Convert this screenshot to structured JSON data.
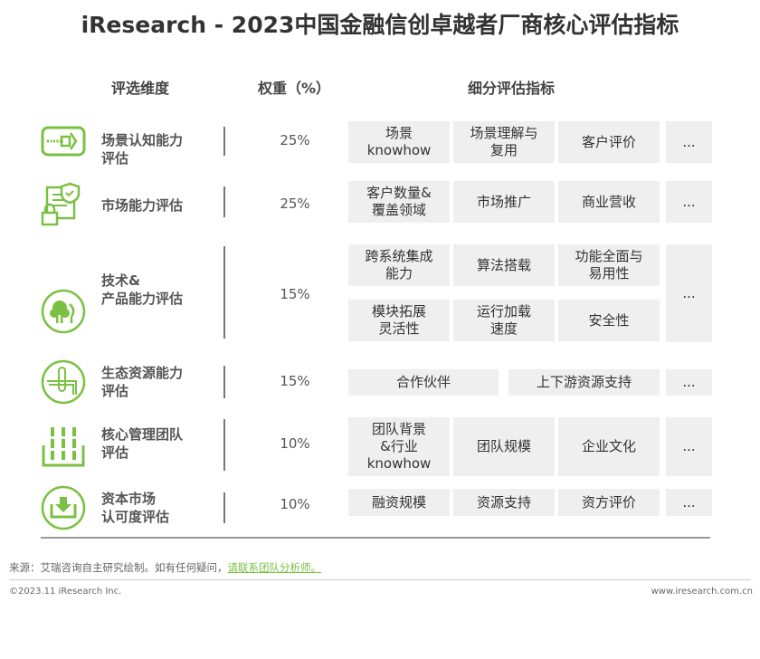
{
  "title": "iResearch - 2023中国金融信创卓越者厂商核心评估指标",
  "headers": {
    "dimension": "评选维度",
    "weight": "权重（%）",
    "indicators": "细分评估指标"
  },
  "accent": "#7ac143",
  "rows": [
    {
      "icon": "zipper-icon",
      "label": [
        "场景认知能力",
        "评估"
      ],
      "weight": "25%",
      "indicators": [
        [
          "场景",
          "knowhow"
        ],
        [
          "场景理解与",
          "复用"
        ],
        [
          "客户评价"
        ]
      ],
      "more": "..."
    },
    {
      "icon": "document-lock-shield-icon",
      "label": [
        "市场能力评估"
      ],
      "weight": "25%",
      "indicators": [
        [
          "客户数量&",
          "覆盖领域"
        ],
        [
          "市场推广"
        ],
        [
          "商业营收"
        ]
      ],
      "more": "..."
    },
    {
      "icon": "trees-icon",
      "label": [
        "技术&",
        "产品能力评估"
      ],
      "weight": "15%",
      "indicators": [
        [
          "跨系统集成",
          "能力"
        ],
        [
          "算法搭载"
        ],
        [
          "功能全面与",
          "易用性"
        ],
        [
          "模块拓展",
          "灵活性"
        ],
        [
          "运行加载",
          "速度"
        ],
        [
          "安全性"
        ]
      ],
      "more": "..."
    },
    {
      "icon": "paperclip-icon",
      "label": [
        "生态资源能力",
        "评估"
      ],
      "weight": "15%",
      "indicators": [
        [
          "合作伙伴"
        ],
        [
          "上下游资源支持"
        ]
      ],
      "more": "..."
    },
    {
      "icon": "team-bars-icon",
      "label": [
        "核心管理团队",
        "评估"
      ],
      "weight": "10%",
      "indicators": [
        [
          "团队背景",
          "&行业",
          "knowhow"
        ],
        [
          "团队规模"
        ],
        [
          "企业文化"
        ]
      ],
      "more": "..."
    },
    {
      "icon": "download-tray-icon",
      "label": [
        "资本市场",
        "认可度评估"
      ],
      "weight": "10%",
      "indicators": [
        [
          "融资规模"
        ],
        [
          "资源支持"
        ],
        [
          "资方评价"
        ]
      ],
      "more": "..."
    }
  ],
  "footer": {
    "source": "来源：艾瑞咨询自主研究绘制。如有任何疑问，",
    "link": "请联系团队分析师。",
    "copyright": "©2023.11 iResearch Inc.",
    "website": "www.iresearch.com.cn"
  }
}
